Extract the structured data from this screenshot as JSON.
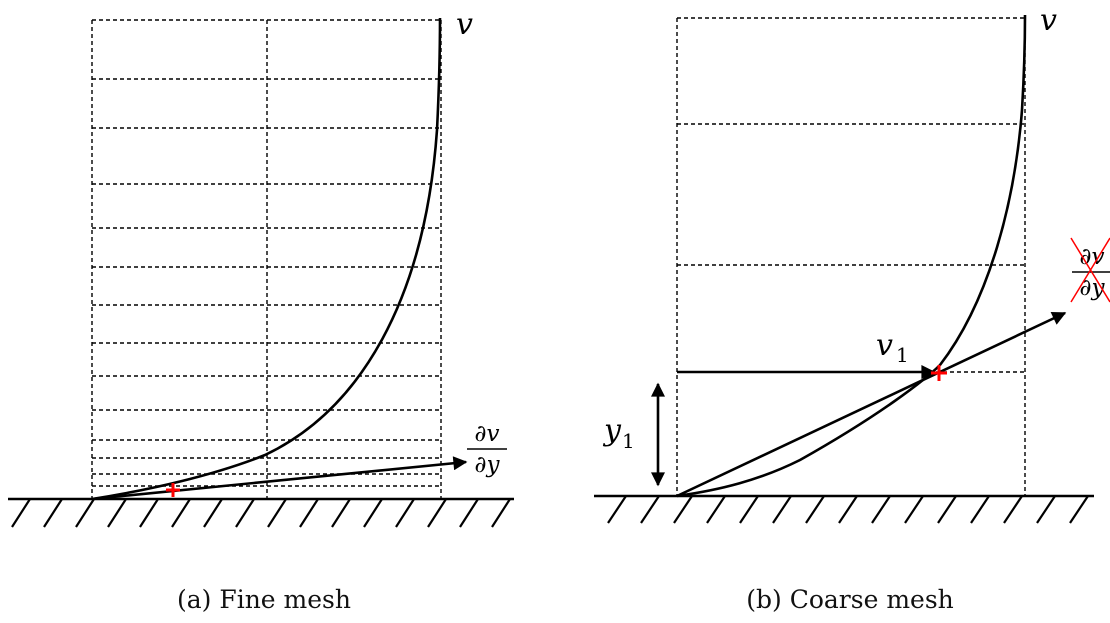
{
  "panel_a": {
    "velocity_label": "v",
    "gradient_label": {
      "numerator": "∂v",
      "denominator": "∂y"
    },
    "caption": "(a) Fine mesh"
  },
  "panel_b": {
    "velocity_label": "v",
    "v1_label": "v",
    "v1_subscript": "1",
    "y1_label": "y",
    "y1_subscript": "1",
    "gradient_label": {
      "numerator": "∂v",
      "denominator": "∂y"
    },
    "caption": "(b) Coarse mesh"
  },
  "colors": {
    "line": "#000000",
    "marker": "#ff0000"
  }
}
